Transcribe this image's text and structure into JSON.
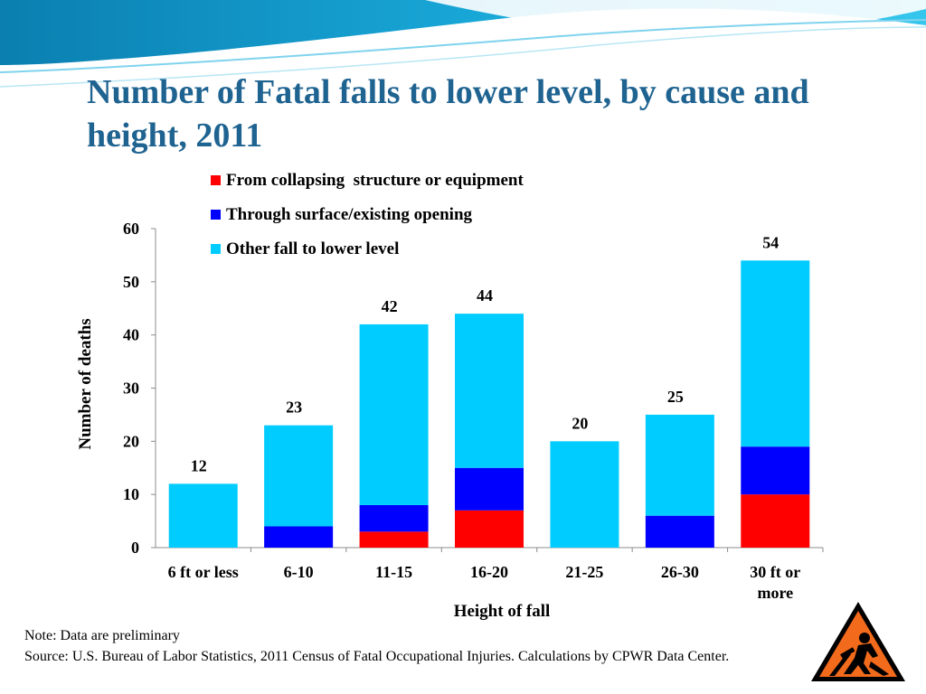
{
  "title": "Number of Fatal falls to lower level, by cause and height, 2011",
  "colors": {
    "title": "#1F6391",
    "header_wave_dark": "#0A7FB0",
    "header_wave_light": "#35C6EC",
    "collapsing": "#FF0000",
    "through_surface": "#0000FF",
    "other": "#00CCFF"
  },
  "chart_data": {
    "type": "bar",
    "stacked": true,
    "categories": [
      "6 ft or less",
      "6-10",
      "11-15",
      "16-20",
      "21-25",
      "26-30",
      "30 ft or more"
    ],
    "series": [
      {
        "name": "From collapsing  structure or equipment",
        "color": "#FF0000",
        "values": [
          0,
          0,
          3,
          7,
          0,
          0,
          10
        ]
      },
      {
        "name": "Through surface/existing opening",
        "color": "#0000FF",
        "values": [
          0,
          4,
          5,
          8,
          0,
          6,
          9
        ]
      },
      {
        "name": "Other fall to lower level",
        "color": "#00CCFF",
        "values": [
          12,
          19,
          34,
          29,
          20,
          19,
          35
        ]
      }
    ],
    "totals": [
      12,
      23,
      42,
      44,
      20,
      25,
      54
    ],
    "xlabel": "Height of fall",
    "ylabel": "Number of deaths",
    "ylim": [
      0,
      60
    ],
    "yticks": [
      0,
      10,
      20,
      30,
      40,
      50,
      60
    ],
    "legend_position": "top-left",
    "grid": false
  },
  "footnote": {
    "note": "Note: Data are preliminary",
    "source": "Source: U.S. Bureau of Labor Statistics, 2011 Census of Fatal Occupational Injuries. Calculations by CPWR Data Center."
  },
  "logo": {
    "icon": "construction-warning-sign-icon"
  }
}
